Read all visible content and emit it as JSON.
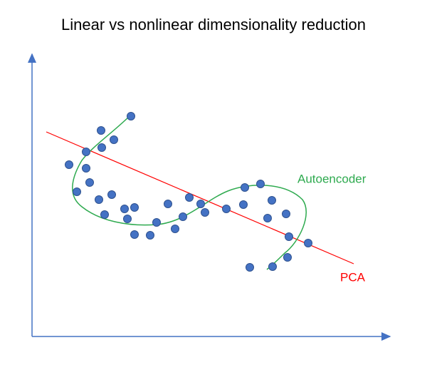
{
  "title": "Linear vs nonlinear dimensionality reduction",
  "labels": {
    "autoencoder": "Autoencoder",
    "pca": "PCA"
  }
}
